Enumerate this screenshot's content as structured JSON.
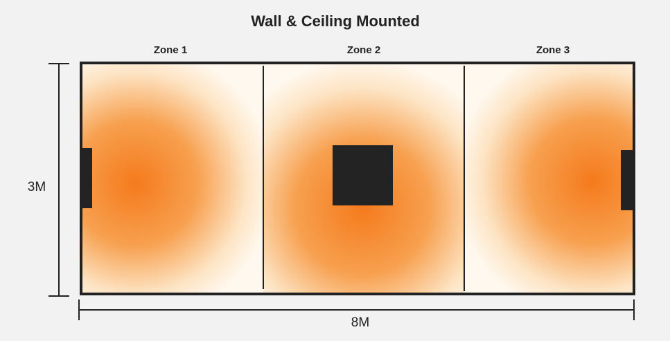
{
  "title": "Wall & Ceiling Mounted",
  "zones": [
    {
      "label": "Zone 1"
    },
    {
      "label": "Zone 2"
    },
    {
      "label": "Zone 3"
    }
  ],
  "dimensions": {
    "height": "3M",
    "width": "8M"
  }
}
